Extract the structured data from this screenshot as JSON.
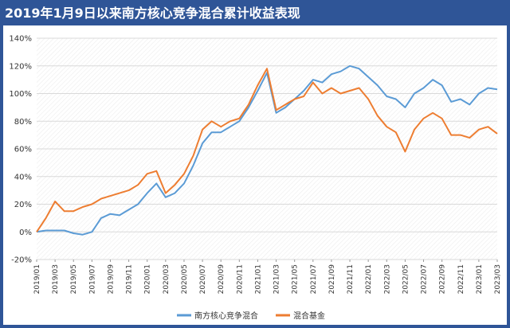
{
  "title": "2019年1月9日以来南方核心竞争混合累计收益表现",
  "colors": {
    "background": "#2f5597",
    "series1": "#5b9bd5",
    "series2": "#ed7d31",
    "grid": "#d9d9d9"
  },
  "chart_data": {
    "type": "line",
    "title": "2019年1月9日以来南方核心竞争混合累计收益表现",
    "xlabel": "",
    "ylabel": "",
    "ylim": [
      -20,
      140
    ],
    "y_ticks": [
      "-20%",
      "0%",
      "20%",
      "40%",
      "60%",
      "80%",
      "100%",
      "120%",
      "140%"
    ],
    "y_tick_values": [
      -20,
      0,
      20,
      40,
      60,
      80,
      100,
      120,
      140
    ],
    "x_ticks": [
      "2019/01",
      "2019/03",
      "2019/05",
      "2019/07",
      "2019/09",
      "2019/11",
      "2020/01",
      "2020/03",
      "2020/05",
      "2020/07",
      "2020/09",
      "2020/11",
      "2021/01",
      "2021/03",
      "2021/05",
      "2021/07",
      "2021/09",
      "2021/11",
      "2022/01",
      "2022/03",
      "2022/05",
      "2022/07",
      "2022/09",
      "2022/11",
      "2023/01",
      "2023/03"
    ],
    "x_start": "2019/01",
    "x_end": "2023/03",
    "grid": true,
    "legend_position": "bottom",
    "x": [
      "2019/01",
      "2019/02",
      "2019/03",
      "2019/04",
      "2019/05",
      "2019/06",
      "2019/07",
      "2019/08",
      "2019/09",
      "2019/10",
      "2019/11",
      "2019/12",
      "2020/01",
      "2020/02",
      "2020/03",
      "2020/04",
      "2020/05",
      "2020/06",
      "2020/07",
      "2020/08",
      "2020/09",
      "2020/10",
      "2020/11",
      "2020/12",
      "2021/01",
      "2021/02",
      "2021/03",
      "2021/04",
      "2021/05",
      "2021/06",
      "2021/07",
      "2021/08",
      "2021/09",
      "2021/10",
      "2021/11",
      "2021/12",
      "2022/01",
      "2022/02",
      "2022/03",
      "2022/04",
      "2022/05",
      "2022/06",
      "2022/07",
      "2022/08",
      "2022/09",
      "2022/10",
      "2022/11",
      "2022/12",
      "2023/01",
      "2023/02",
      "2023/03"
    ],
    "series": [
      {
        "name": "南方核心竞争混合",
        "color": "#5b9bd5",
        "values": [
          0,
          1,
          1,
          1,
          -1,
          -2,
          0,
          10,
          13,
          12,
          16,
          20,
          28,
          35,
          25,
          28,
          35,
          48,
          64,
          72,
          72,
          76,
          80,
          90,
          102,
          115,
          86,
          90,
          96,
          102,
          110,
          108,
          114,
          116,
          120,
          118,
          112,
          106,
          98,
          96,
          90,
          100,
          104,
          110,
          106,
          94,
          96,
          92,
          100,
          104,
          103
        ]
      },
      {
        "name": "混合基金",
        "color": "#ed7d31",
        "values": [
          0,
          10,
          22,
          15,
          15,
          18,
          20,
          24,
          26,
          28,
          30,
          34,
          42,
          44,
          28,
          34,
          42,
          55,
          74,
          80,
          76,
          80,
          82,
          92,
          106,
          118,
          88,
          92,
          96,
          98,
          108,
          100,
          104,
          100,
          102,
          104,
          96,
          84,
          76,
          72,
          58,
          74,
          82,
          86,
          82,
          70,
          70,
          68,
          74,
          76,
          71
        ]
      }
    ]
  }
}
